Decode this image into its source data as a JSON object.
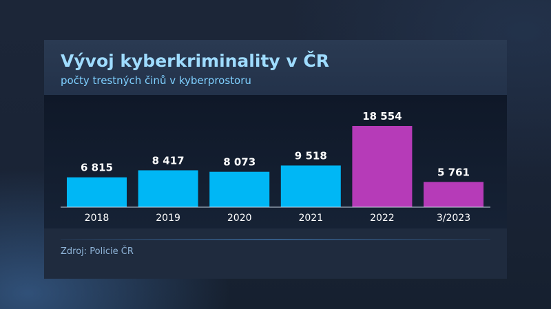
{
  "header": {
    "title": "Vývoj kyberkriminality v ČR",
    "subtitle": "počty trestných činů v kyberprostoru"
  },
  "source": "Zdroj: Policie ČR",
  "colors": {
    "regular_bar": "#00b7f5",
    "highlight_bar": "#b63bb8",
    "title": "#9fdcff",
    "panel": "#1f2b3e"
  },
  "chart_data": {
    "type": "bar",
    "title": "Vývoj kyberkriminality v ČR",
    "subtitle": "počty trestných činů v kyberprostoru",
    "xlabel": "",
    "ylabel": "",
    "categories": [
      "2018",
      "2019",
      "2020",
      "2021",
      "2022",
      "3/2023"
    ],
    "values": [
      6815,
      8417,
      8073,
      9518,
      18554,
      5761
    ],
    "value_labels": [
      "6 815",
      "8 417",
      "8 073",
      "9 518",
      "18 554",
      "5 761"
    ],
    "highlighted": [
      false,
      false,
      false,
      false,
      true,
      true
    ],
    "ylim": [
      0,
      18554
    ],
    "grid": false,
    "legend": "none"
  }
}
